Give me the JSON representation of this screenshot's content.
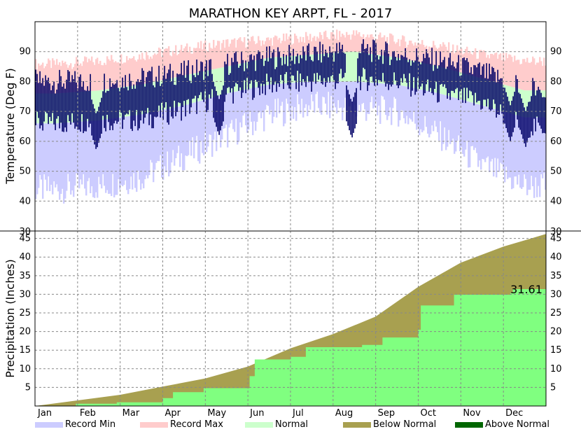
{
  "chart_data": {
    "type": "area",
    "title": "MARATHON KEY ARPT, FL - 2017",
    "months": [
      "Jan",
      "Feb",
      "Mar",
      "Apr",
      "May",
      "Jun",
      "Jul",
      "Aug",
      "Sep",
      "Oct",
      "Nov",
      "Dec"
    ],
    "temperature": {
      "ylabel": "Temperature (Deg F)",
      "ylim": [
        30,
        100
      ],
      "yticks": [
        "40",
        "50",
        "60",
        "70",
        "80",
        "90"
      ],
      "bottom_tick": "30",
      "grid": true,
      "normal_high_monthly": [
        76,
        77,
        79,
        82,
        85,
        88,
        89,
        90,
        88,
        85,
        81,
        77
      ],
      "normal_low_monthly": [
        66,
        67,
        69,
        72,
        76,
        79,
        80,
        80,
        79,
        76,
        72,
        68
      ],
      "record_max_monthly": [
        85,
        86,
        88,
        90,
        92,
        93,
        94,
        95,
        93,
        91,
        88,
        86
      ],
      "record_min_monthly": [
        44,
        45,
        48,
        55,
        62,
        69,
        72,
        71,
        70,
        62,
        52,
        45
      ],
      "observed_high_monthly": [
        80,
        80,
        81,
        83,
        86,
        88,
        89,
        91,
        89,
        87,
        83,
        78
      ],
      "observed_low_monthly": [
        66,
        67,
        67,
        71,
        76,
        79,
        80,
        81,
        80,
        76,
        73,
        65
      ],
      "cold_snaps": [
        [
          0.12,
          57
        ],
        [
          0.36,
          62
        ],
        [
          0.62,
          61
        ],
        [
          0.93,
          60
        ],
        [
          0.96,
          58
        ],
        [
          0.99,
          64
        ]
      ]
    },
    "precipitation": {
      "ylabel": "Precipitation (Inches)",
      "ylim": [
        0,
        47
      ],
      "yticks": [
        "5",
        "10",
        "15",
        "20",
        "25",
        "30",
        "35",
        "40",
        "45"
      ],
      "grid": true,
      "annotation": "31.61",
      "normal_cumulative_monthly_end": [
        1.5,
        3.0,
        5.2,
        7.4,
        10.6,
        15.5,
        19.3,
        24.0,
        32.0,
        38.5,
        42.8,
        46.2
      ],
      "observed_cumulative_breakpoints": [
        [
          0.0,
          0.0
        ],
        [
          0.08,
          0.6
        ],
        [
          0.16,
          1.0
        ],
        [
          0.25,
          2.1
        ],
        [
          0.27,
          3.7
        ],
        [
          0.33,
          4.8
        ],
        [
          0.42,
          8.0
        ],
        [
          0.43,
          12.5
        ],
        [
          0.5,
          13.2
        ],
        [
          0.53,
          15.8
        ],
        [
          0.64,
          16.4
        ],
        [
          0.68,
          18.4
        ],
        [
          0.75,
          20.5
        ],
        [
          0.755,
          27.0
        ],
        [
          0.82,
          29.9
        ],
        [
          0.93,
          30.3
        ],
        [
          0.935,
          31.4
        ],
        [
          1.0,
          31.61
        ]
      ]
    },
    "legend": [
      {
        "label": "Record Min",
        "color": "#ccccff"
      },
      {
        "label": "Record Max",
        "color": "#ffcccc"
      },
      {
        "label": "Normal",
        "color": "#ccffcc"
      },
      {
        "label": "Below Normal",
        "color": "#a8a050"
      },
      {
        "label": "Above Normal",
        "color": "#006600"
      }
    ],
    "colors": {
      "observed_temp": "#000066",
      "precip_observed": "#80ff80",
      "precip_below_normal": "#a8a050"
    }
  }
}
